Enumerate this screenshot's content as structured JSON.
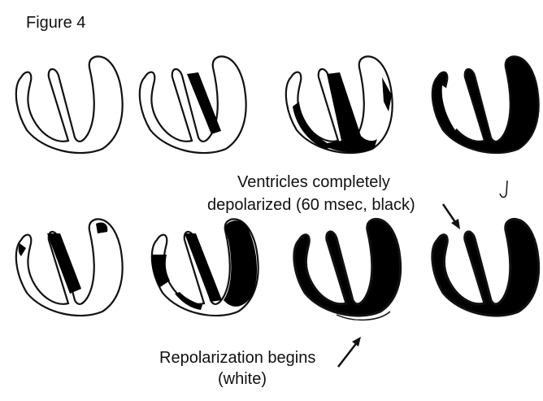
{
  "figure": {
    "title": "Figure 4"
  },
  "annotations": {
    "depolarized": {
      "line1": "Ventricles completely",
      "line2": "depolarized (60 msec, black)"
    },
    "repolarization": {
      "line1": "Repolarization begins",
      "line2": "(white)"
    }
  },
  "colors": {
    "ink": "#111111",
    "depolarized": "#000000",
    "background": "#ffffff"
  },
  "panels": [
    {
      "stage": 1,
      "state": "resting"
    },
    {
      "stage": 2,
      "state": "septum-depolarizing"
    },
    {
      "stage": 3,
      "state": "apex-and-walls-depolarizing"
    },
    {
      "stage": 4,
      "state": "mostly-depolarized"
    },
    {
      "stage": 5,
      "state": "septum-and-lateral-wall"
    },
    {
      "stage": 6,
      "state": "walls-depolarizing"
    },
    {
      "stage": 7,
      "state": "completely-depolarized"
    },
    {
      "stage": 8,
      "state": "repolarization-beginning"
    }
  ]
}
